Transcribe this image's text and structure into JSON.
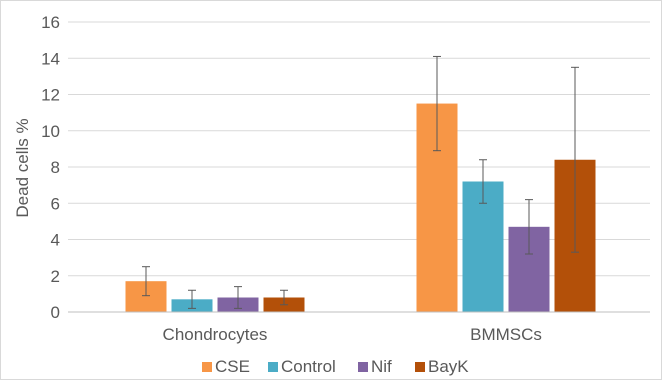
{
  "chart_data": {
    "type": "bar",
    "title": "",
    "xlabel": "",
    "ylabel": "Dead cells %",
    "ylim": [
      0,
      16
    ],
    "yticks": [
      0,
      2,
      4,
      6,
      8,
      10,
      12,
      14,
      16
    ],
    "grid": true,
    "legend_position": "bottom",
    "categories": [
      "Chondrocytes",
      "BMMSCs"
    ],
    "series": [
      {
        "name": "CSE",
        "color": "#F79646",
        "values": [
          1.7,
          11.5
        ],
        "errors": [
          0.8,
          2.6
        ]
      },
      {
        "name": "Control",
        "color": "#4BACC6",
        "values": [
          0.7,
          7.2
        ],
        "errors": [
          0.5,
          1.2
        ]
      },
      {
        "name": "Nif",
        "color": "#8064A2",
        "values": [
          0.8,
          4.7
        ],
        "errors": [
          0.6,
          1.5
        ]
      },
      {
        "name": "BayK",
        "color": "#B35009",
        "values": [
          0.8,
          8.4
        ],
        "errors": [
          0.4,
          5.1
        ]
      }
    ]
  }
}
